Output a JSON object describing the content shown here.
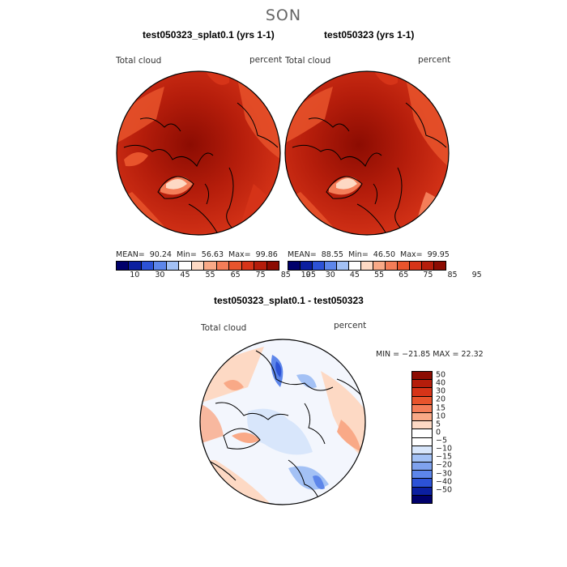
{
  "figure": {
    "season": "SON"
  },
  "panels": [
    {
      "title": "test050323_splat0.1 (yrs 1-1)",
      "variable": "Total cloud",
      "units": "percent",
      "stats": {
        "mean_label": "MEAN=",
        "mean": "90.24",
        "min_label": "Min=",
        "min": "56.63",
        "max_label": "Max=",
        "max": "99.86"
      }
    },
    {
      "title": "test050323 (yrs 1-1)",
      "variable": "Total cloud",
      "units": "percent",
      "stats": {
        "mean_label": "MEAN=",
        "mean": "88.55",
        "min_label": "Min=",
        "min": "46.50",
        "max_label": "Max=",
        "max": "99.95"
      }
    },
    {
      "title": "test050323_splat0.1 - test050323",
      "variable": "Total cloud",
      "units": "percent",
      "range_text": "MIN = −21.85 MAX =  22.32"
    }
  ],
  "colorbar_abs": {
    "colors": [
      "#00006b",
      "#0b1fa0",
      "#2c52d6",
      "#5d86ea",
      "#a3c1f5",
      "#ffffff",
      "#fdd9c4",
      "#f9a987",
      "#f47d58",
      "#e8542c",
      "#d63418",
      "#b51d0b",
      "#8c0c02"
    ],
    "tick_labels": [
      "10",
      "30",
      "45",
      "55",
      "65",
      "75",
      "85",
      "95"
    ]
  },
  "colorbar_diff": {
    "colors": [
      "#8c0c02",
      "#b51d0b",
      "#d63418",
      "#e8542c",
      "#f47d58",
      "#f9a987",
      "#fdd9c4",
      "#ffffff",
      "#ffffff",
      "#d8e6fb",
      "#a3c1f5",
      "#7fa2ee",
      "#5d86ea",
      "#2c52d6",
      "#0b1fa0",
      "#00006b"
    ],
    "tick_labels": [
      "50",
      "40",
      "30",
      "20",
      "15",
      "10",
      "5",
      "0",
      "−5",
      "−10",
      "−15",
      "−20",
      "−30",
      "−40",
      "−50"
    ]
  }
}
